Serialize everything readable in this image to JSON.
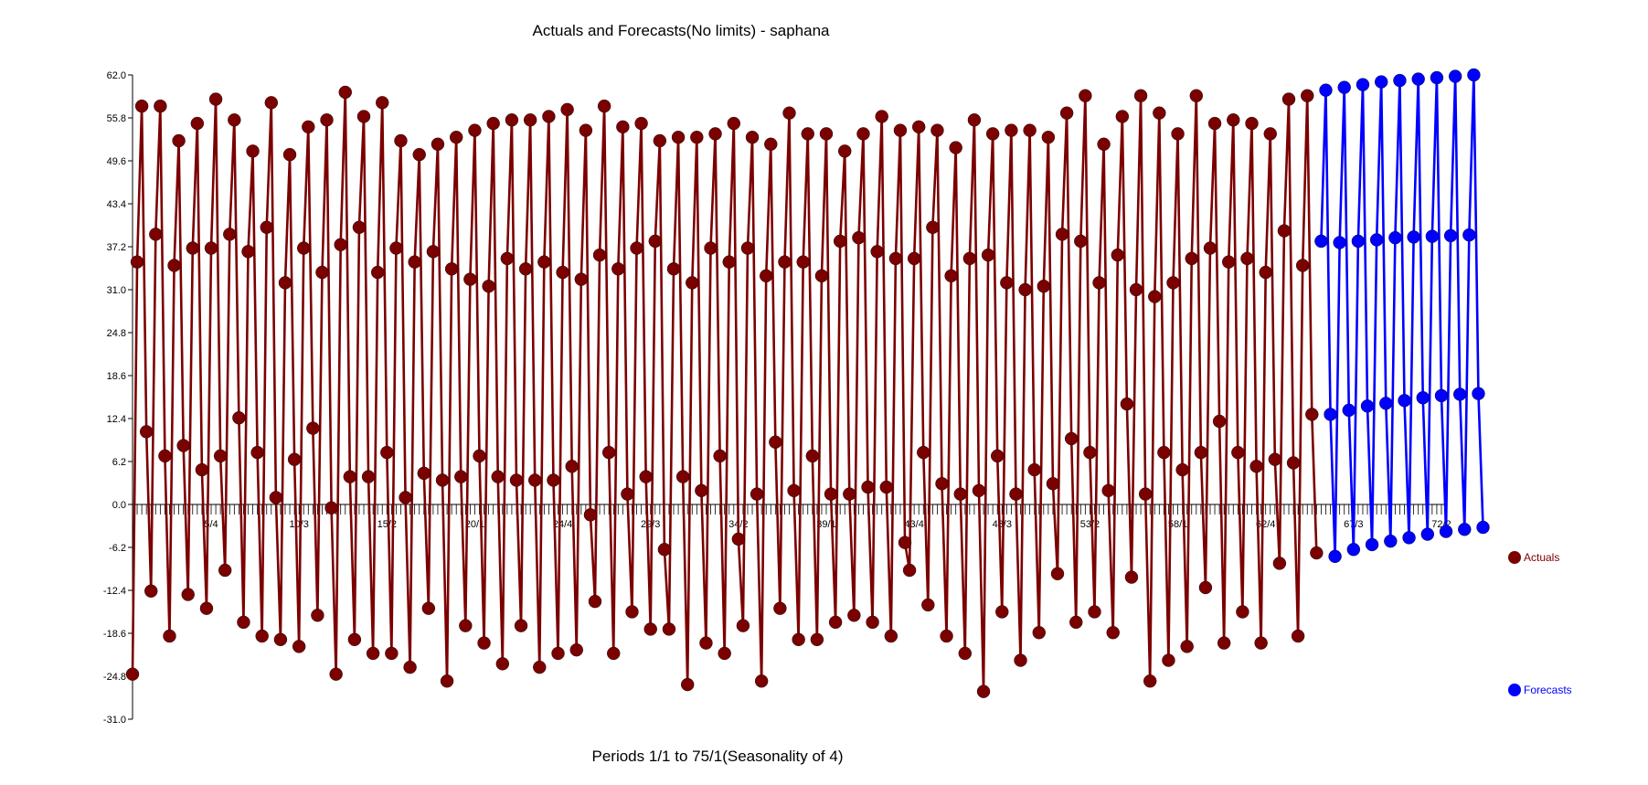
{
  "chart_data": {
    "type": "line",
    "title": "Actuals and Forecasts(No limits) - saphana",
    "xlabel": "Periods 1/1 to 75/1(Seasonality of 4)",
    "ylabel": "",
    "ylim": [
      -31.0,
      62.0
    ],
    "y_ticks": [
      "62.0",
      "55.8",
      "49.6",
      "43.4",
      "37.2",
      "31.0",
      "24.8",
      "18.6",
      "12.4",
      "6.2",
      "0.0",
      "-6.2",
      "-12.4",
      "-18.6",
      "-24.8",
      "-31.0"
    ],
    "x_tick_labels": [
      "5/4",
      "10/3",
      "15/2",
      "20/1",
      "24/4",
      "29/3",
      "34/2",
      "39/1",
      "43/4",
      "48/3",
      "53/2",
      "58/1",
      "62/4",
      "67/3",
      "72/2"
    ],
    "grid": false,
    "legend_position": "right",
    "colors": {
      "actuals": "#7b0000",
      "forecasts": "#0000ff"
    },
    "series": [
      {
        "name": "Actuals",
        "values": [
          -24.5,
          35,
          57.5,
          10.5,
          -12.5,
          39,
          57.5,
          7,
          -19,
          34.5,
          52.5,
          8.5,
          -13,
          37,
          55,
          5,
          -15,
          37,
          58.5,
          7,
          -9.5,
          39,
          55.5,
          12.5,
          -17,
          36.5,
          51,
          7.5,
          -19,
          40,
          58,
          1,
          -19.5,
          32,
          50.5,
          6.5,
          -20.5,
          37,
          54.5,
          11,
          -16,
          33.5,
          55.5,
          -0.5,
          -24.5,
          37.5,
          59.5,
          4,
          -19.5,
          40,
          56,
          4,
          -21.5,
          33.5,
          58,
          7.5,
          -21.5,
          37,
          52.5,
          1,
          -23.5,
          35,
          50.5,
          4.5,
          -15,
          36.5,
          52,
          3.5,
          -25.5,
          34,
          53,
          4,
          -17.5,
          32.5,
          54,
          7,
          -20,
          31.5,
          55,
          4,
          -23,
          35.5,
          55.5,
          3.5,
          -17.5,
          34,
          55.5,
          3.5,
          -23.5,
          35,
          56,
          3.5,
          -21.5,
          33.5,
          57,
          5.5,
          -21,
          32.5,
          54,
          -1.5,
          -14,
          36,
          57.5,
          7.5,
          -21.5,
          34,
          54.5,
          1.5,
          -15.5,
          37,
          55,
          4,
          -18,
          38,
          52.5,
          -6.5,
          -18,
          34,
          53,
          4,
          -26,
          32,
          53,
          2,
          -20,
          37,
          53.5,
          7,
          -21.5,
          35,
          55,
          -5,
          -17.5,
          37,
          53,
          1.5,
          -25.5,
          33,
          52,
          9,
          -15,
          35,
          56.5,
          2,
          -19.5,
          35,
          53.5,
          7,
          -19.5,
          33,
          53.5,
          1.5,
          -17,
          38,
          51,
          1.5,
          -16,
          38.5,
          53.5,
          2.5,
          -17,
          36.5,
          56,
          2.5,
          -19,
          35.5,
          54,
          -5.5,
          -9.5,
          35.5,
          54.5,
          7.5,
          -14.5,
          40,
          54,
          3,
          -19,
          33,
          51.5,
          1.5,
          -21.5,
          35.5,
          55.5,
          2,
          -27,
          36,
          53.5,
          7,
          -15.5,
          32,
          54,
          1.5,
          -22.5,
          31,
          54,
          5,
          -18.5,
          31.5,
          53,
          3,
          -10,
          39,
          56.5,
          9.5,
          -17,
          38,
          59,
          7.5,
          -15.5,
          32,
          52,
          2,
          -18.5,
          36,
          56,
          14.5,
          -10.5,
          31,
          59,
          1.5,
          -25.5,
          30,
          56.5,
          7.5,
          -22.5,
          32,
          53.5,
          5,
          -20.5,
          35.5,
          59,
          7.5,
          -12,
          37,
          55,
          12,
          -20,
          35,
          55.5,
          7.5,
          -15.5,
          35.5,
          55,
          5.5,
          -20,
          33.5,
          53.5,
          6.5,
          -8.5,
          39.5,
          58.5,
          6,
          -19,
          34.5,
          59,
          13,
          -7
        ]
      },
      {
        "name": "Forecasts",
        "values": [
          38,
          59.8,
          13,
          -7.5,
          37.8,
          60.2,
          13.6,
          -6.5,
          38,
          60.6,
          14.2,
          -5.8,
          38.2,
          61,
          14.6,
          -5.3,
          38.5,
          61.2,
          15,
          -4.8,
          38.6,
          61.4,
          15.4,
          -4.3,
          38.7,
          61.6,
          15.7,
          -3.9,
          38.8,
          61.8,
          15.9,
          -3.6,
          38.9,
          62,
          16,
          -3.3
        ]
      }
    ]
  }
}
